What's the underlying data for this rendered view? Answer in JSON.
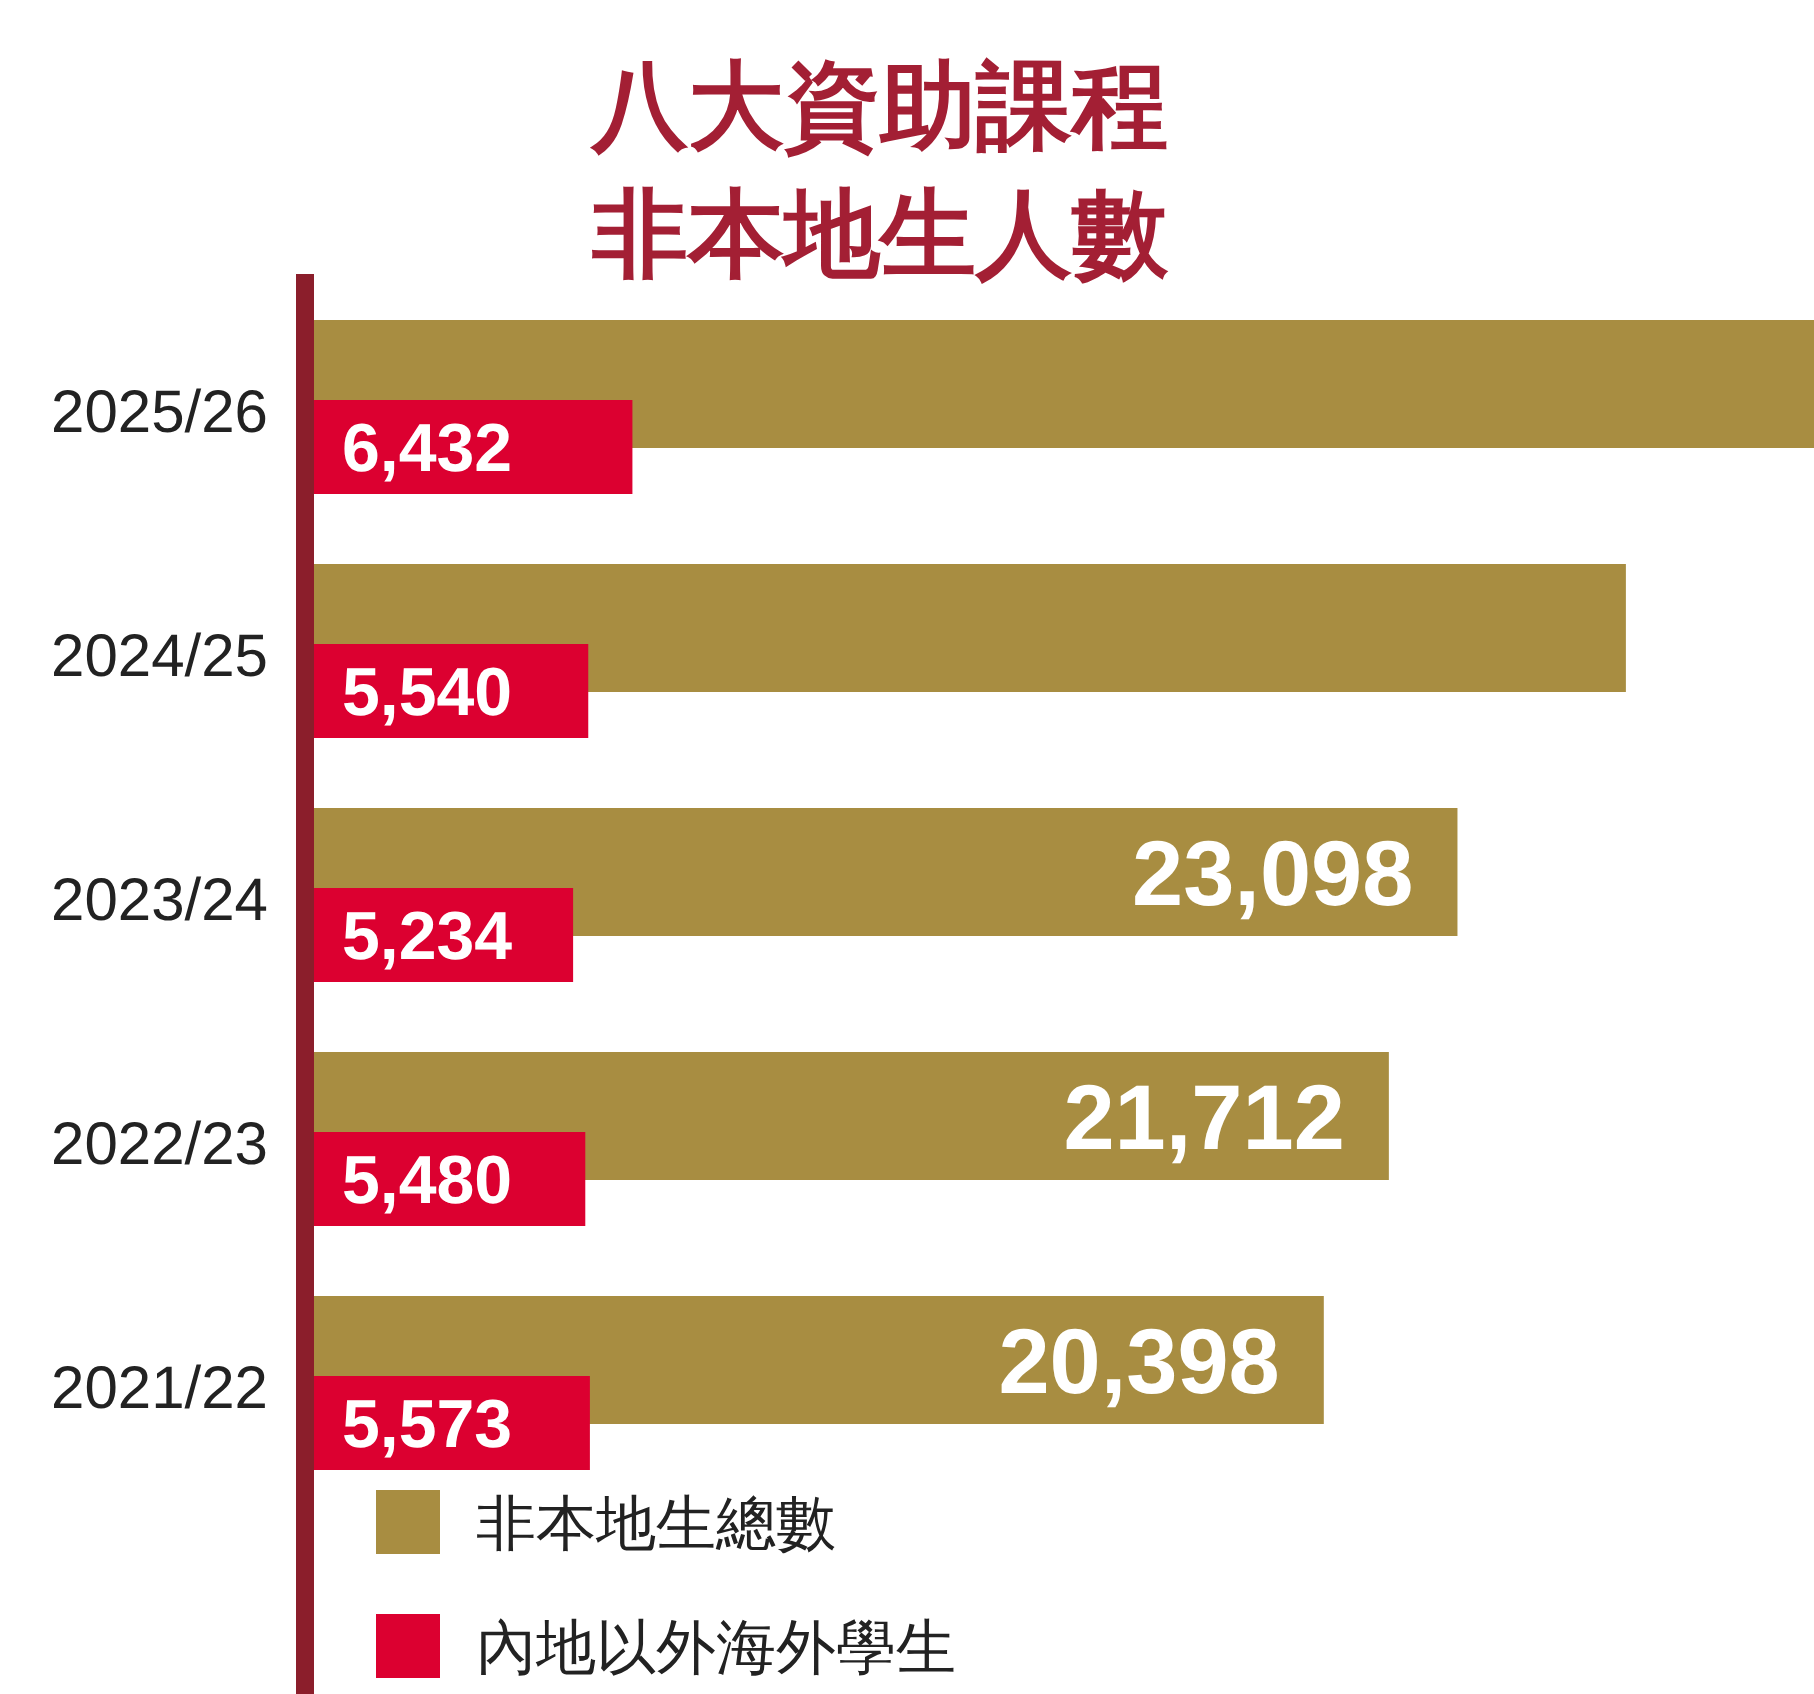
{
  "chart_data": {
    "type": "bar",
    "orientation": "horizontal",
    "title": "八大資助課程",
    "subtitle": "非本地生人數",
    "categories": [
      "2025/26",
      "2024/25",
      "2023/24",
      "2022/23",
      "2021/22"
    ],
    "series": [
      {
        "name": "非本地生總數",
        "color": "#a88d41",
        "values": [
          30300,
          26500,
          23098,
          21712,
          20398
        ],
        "value_labels": [
          null,
          null,
          "23,098",
          "21,712",
          "20,398"
        ]
      },
      {
        "name": "內地以外海外學生",
        "color": "#dc0030",
        "values": [
          6432,
          5540,
          5234,
          5480,
          5573
        ],
        "value_labels": [
          "6,432",
          "5,540",
          "5,234",
          "5,480",
          "5,573"
        ]
      }
    ],
    "legend": "bottom left"
  }
}
